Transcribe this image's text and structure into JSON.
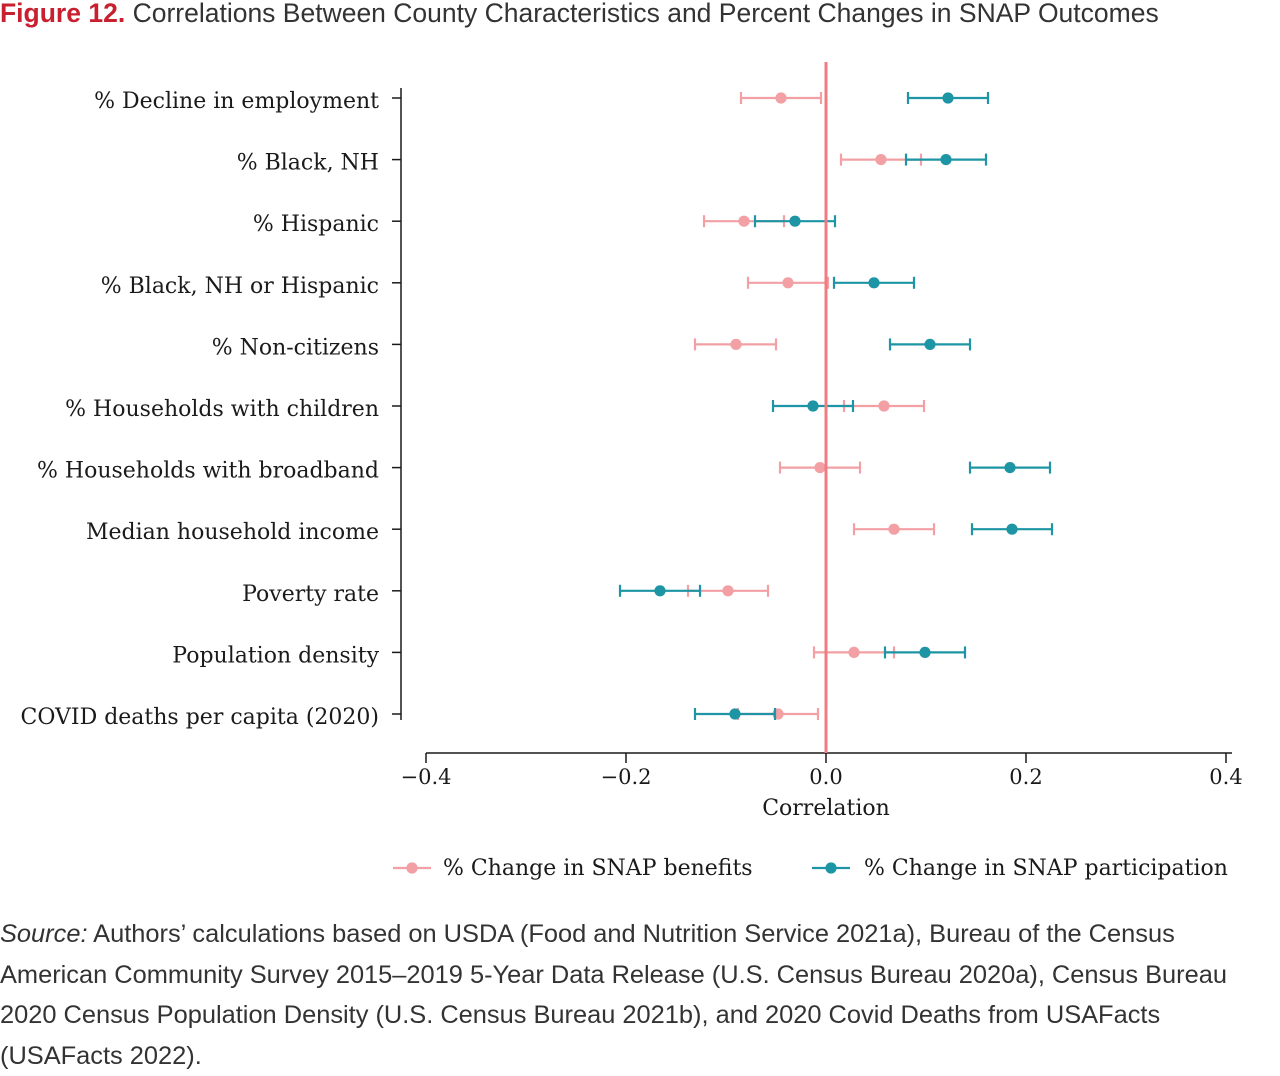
{
  "figure": {
    "label": "Figure 12.",
    "title": "Correlations Between County Characteristics and Percent Changes in SNAP Outcomes"
  },
  "chart_data": {
    "type": "scatter",
    "subtype": "coefficient-plot-with-error-bars",
    "xlabel": "Correlation",
    "xlim": [
      -0.4,
      0.4
    ],
    "xticks": [
      -0.4,
      -0.2,
      0.0,
      0.2,
      0.4
    ],
    "xtick_labels": [
      "−0.4",
      "−0.2",
      "0.0",
      "0.2",
      "0.4"
    ],
    "reference_line": 0,
    "grid": false,
    "legend_position": "bottom",
    "categories": [
      "% Decline in employment",
      "% Black, NH",
      "% Hispanic",
      "% Black, NH or Hispanic ",
      "% Non-citizens",
      "% Households with children",
      "% Households with broadband",
      "Median household income",
      "Poverty rate",
      "Population density",
      "COVID deaths per capita (2020)"
    ],
    "series": [
      {
        "name": "% Change in SNAP benefits",
        "color": "#f2a0a4",
        "estimate": [
          -0.045,
          0.055,
          -0.082,
          -0.038,
          -0.09,
          0.058,
          -0.006,
          0.068,
          -0.098,
          0.028,
          -0.048
        ],
        "ci_low": [
          -0.085,
          0.015,
          -0.122,
          -0.078,
          -0.131,
          0.018,
          -0.046,
          0.028,
          -0.138,
          -0.012,
          -0.088
        ],
        "ci_high": [
          -0.005,
          0.095,
          -0.042,
          0.002,
          -0.05,
          0.098,
          0.034,
          0.108,
          -0.058,
          0.068,
          -0.008
        ]
      },
      {
        "name": "% Change in SNAP participation",
        "color": "#1d95a4",
        "estimate": [
          0.122,
          0.12,
          -0.031,
          0.048,
          0.104,
          -0.013,
          0.184,
          0.186,
          -0.166,
          0.099,
          -0.091
        ],
        "ci_low": [
          0.082,
          0.08,
          -0.071,
          0.008,
          0.064,
          -0.053,
          0.144,
          0.146,
          -0.206,
          0.059,
          -0.131
        ],
        "ci_high": [
          0.162,
          0.16,
          0.009,
          0.088,
          0.144,
          0.027,
          0.224,
          0.226,
          -0.126,
          0.139,
          -0.051
        ]
      }
    ],
    "colors": {
      "reference_line": "#f07c82",
      "axis": "#1a1a1a"
    }
  },
  "source": {
    "label": "Source:",
    "text": " Authors’ calculations based on USDA (Food and Nutrition Service 2021a), Bureau of the Census American Community Survey 2015–2019 5-Year Data Release (U.S. Census Bureau 2020a), Census Bureau 2020 Census Population Density (U.S. Census Bureau 2021b), and 2020 Covid Deaths from USAFacts (USAFacts 2022)."
  }
}
